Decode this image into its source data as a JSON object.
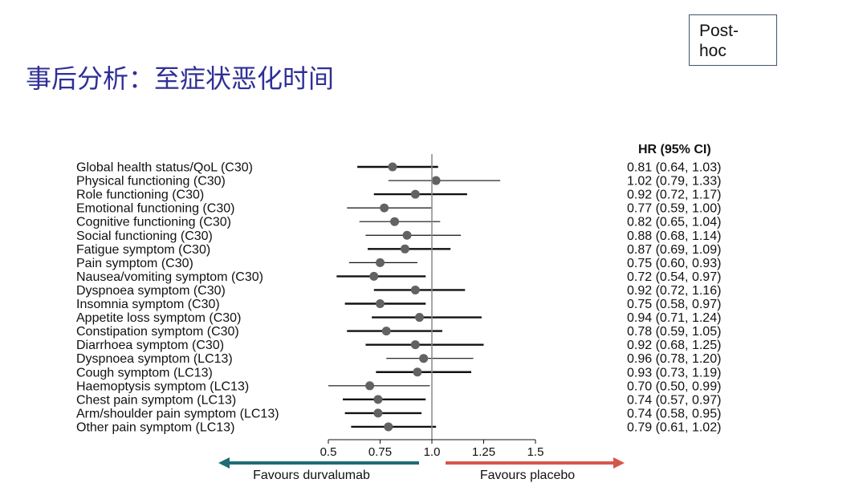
{
  "slide": {
    "title": "事后分析：至症状恶化时间",
    "badge_lines": [
      "Post-",
      "hoc"
    ]
  },
  "colors": {
    "title": "#2f3095",
    "point": "#626262",
    "ci_line": "#111111",
    "reference_line": "#8a8a8a",
    "favours_left_arrow": "#1f6c74",
    "favours_right_arrow": "#d3574a"
  },
  "chart_data": {
    "type": "scatter",
    "column_header": "HR (95% CI)",
    "xlim": [
      0.5,
      1.5
    ],
    "x_tick_labels": [
      "0.5",
      "0.75",
      "1.0",
      "1.25",
      "1.5"
    ],
    "reference_line": 1.0,
    "favours_left": "Favours durvalumab",
    "favours_right": "Favours placebo",
    "rows": [
      {
        "label": "Global health status/QoL (C30)",
        "hr": 0.81,
        "lower": 0.64,
        "upper": 1.03,
        "text": "0.81 (0.64, 1.03)"
      },
      {
        "label": "Physical functioning (C30)",
        "hr": 1.02,
        "lower": 0.79,
        "upper": 1.33,
        "text": "1.02 (0.79, 1.33)"
      },
      {
        "label": "Role functioning (C30)",
        "hr": 0.92,
        "lower": 0.72,
        "upper": 1.17,
        "text": "0.92 (0.72, 1.17)"
      },
      {
        "label": "Emotional functioning (C30)",
        "hr": 0.77,
        "lower": 0.59,
        "upper": 1.0,
        "text": "0.77 (0.59, 1.00)"
      },
      {
        "label": "Cognitive functioning (C30)",
        "hr": 0.82,
        "lower": 0.65,
        "upper": 1.04,
        "text": "0.82 (0.65, 1.04)"
      },
      {
        "label": "Social functioning (C30)",
        "hr": 0.88,
        "lower": 0.68,
        "upper": 1.14,
        "text": "0.88 (0.68, 1.14)"
      },
      {
        "label": "Fatigue symptom (C30)",
        "hr": 0.87,
        "lower": 0.69,
        "upper": 1.09,
        "text": "0.87 (0.69, 1.09)"
      },
      {
        "label": "Pain symptom (C30)",
        "hr": 0.75,
        "lower": 0.6,
        "upper": 0.93,
        "text": "0.75 (0.60, 0.93)"
      },
      {
        "label": "Nausea/vomiting symptom (C30)",
        "hr": 0.72,
        "lower": 0.54,
        "upper": 0.97,
        "text": "0.72 (0.54, 0.97)"
      },
      {
        "label": "Dyspnoea symptom (C30)",
        "hr": 0.92,
        "lower": 0.72,
        "upper": 1.16,
        "text": "0.92 (0.72, 1.16)"
      },
      {
        "label": "Insomnia symptom (C30)",
        "hr": 0.75,
        "lower": 0.58,
        "upper": 0.97,
        "text": "0.75 (0.58, 0.97)"
      },
      {
        "label": "Appetite loss symptom (C30)",
        "hr": 0.94,
        "lower": 0.71,
        "upper": 1.24,
        "text": "0.94 (0.71, 1.24)"
      },
      {
        "label": "Constipation symptom (C30)",
        "hr": 0.78,
        "lower": 0.59,
        "upper": 1.05,
        "text": "0.78 (0.59, 1.05)"
      },
      {
        "label": "Diarrhoea symptom (C30)",
        "hr": 0.92,
        "lower": 0.68,
        "upper": 1.25,
        "text": "0.92 (0.68, 1.25)"
      },
      {
        "label": "Dyspnoea symptom (LC13)",
        "hr": 0.96,
        "lower": 0.78,
        "upper": 1.2,
        "text": "0.96 (0.78, 1.20)"
      },
      {
        "label": "Cough symptom (LC13)",
        "hr": 0.93,
        "lower": 0.73,
        "upper": 1.19,
        "text": "0.93 (0.73, 1.19)"
      },
      {
        "label": "Haemoptysis symptom (LC13)",
        "hr": 0.7,
        "lower": 0.5,
        "upper": 0.99,
        "text": "0.70 (0.50, 0.99)"
      },
      {
        "label": "Chest pain symptom (LC13)",
        "hr": 0.74,
        "lower": 0.57,
        "upper": 0.97,
        "text": "0.74 (0.57, 0.97)"
      },
      {
        "label": "Arm/shoulder pain symptom (LC13)",
        "hr": 0.74,
        "lower": 0.58,
        "upper": 0.95,
        "text": "0.74 (0.58, 0.95)"
      },
      {
        "label": "Other pain symptom (LC13)",
        "hr": 0.79,
        "lower": 0.61,
        "upper": 1.02,
        "text": "0.79 (0.61, 1.02)"
      }
    ]
  }
}
